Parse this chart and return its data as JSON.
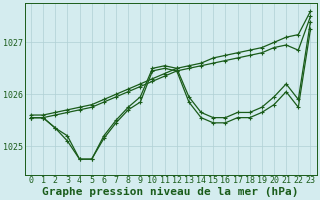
{
  "xlabel": "Graphe pression niveau de la mer (hPa)",
  "background_color": "#d4ecef",
  "grid_color": "#b0d0d4",
  "line_color": "#1a5c1a",
  "xlim": [
    -0.5,
    23.5
  ],
  "ylim_bottom": 1024.45,
  "ylim_top": 1027.75,
  "yticks": [
    1025,
    1026,
    1027
  ],
  "xticks": [
    0,
    1,
    2,
    3,
    4,
    5,
    6,
    7,
    8,
    9,
    10,
    11,
    12,
    13,
    14,
    15,
    16,
    17,
    18,
    19,
    20,
    21,
    22,
    23
  ],
  "series": [
    {
      "x": [
        0,
        1,
        2,
        3,
        4,
        5,
        6,
        7,
        8,
        9,
        10,
        11,
        12,
        13,
        14,
        15,
        16,
        17,
        18,
        19,
        20,
        21,
        22,
        23
      ],
      "y": [
        1025.6,
        1025.6,
        1025.65,
        1025.7,
        1025.75,
        1025.8,
        1025.9,
        1026.0,
        1026.1,
        1026.2,
        1026.3,
        1026.4,
        1026.5,
        1026.55,
        1026.6,
        1026.7,
        1026.75,
        1026.8,
        1026.85,
        1026.9,
        1027.0,
        1027.1,
        1027.15,
        1027.6
      ]
    },
    {
      "x": [
        0,
        1,
        2,
        3,
        4,
        5,
        6,
        7,
        8,
        9,
        10,
        11,
        12,
        13,
        14,
        15,
        16,
        17,
        18,
        19,
        20,
        21,
        22,
        23
      ],
      "y": [
        1025.55,
        1025.55,
        1025.6,
        1025.65,
        1025.7,
        1025.75,
        1025.85,
        1025.95,
        1026.05,
        1026.15,
        1026.25,
        1026.35,
        1026.45,
        1026.5,
        1026.55,
        1026.6,
        1026.65,
        1026.7,
        1026.75,
        1026.8,
        1026.9,
        1026.95,
        1026.85,
        1027.5
      ]
    },
    {
      "x": [
        0,
        1,
        2,
        3,
        4,
        5,
        6,
        7,
        8,
        9,
        10,
        11,
        12,
        13,
        14,
        15,
        16,
        17,
        18,
        19,
        20,
        21,
        22,
        23
      ],
      "y": [
        1025.55,
        1025.55,
        1025.35,
        1025.2,
        1024.75,
        1024.75,
        1025.2,
        1025.5,
        1025.75,
        1025.95,
        1026.5,
        1026.55,
        1026.5,
        1025.95,
        1025.65,
        1025.55,
        1025.55,
        1025.65,
        1025.65,
        1025.75,
        1025.95,
        1026.2,
        1025.9,
        1027.4
      ]
    },
    {
      "x": [
        0,
        1,
        2,
        3,
        4,
        5,
        6,
        7,
        8,
        9,
        10,
        11,
        12,
        13,
        14,
        15,
        16,
        17,
        18,
        19,
        20,
        21,
        22,
        23
      ],
      "y": [
        1025.55,
        1025.55,
        1025.35,
        1025.1,
        1024.75,
        1024.75,
        1025.15,
        1025.45,
        1025.7,
        1025.85,
        1026.45,
        1026.5,
        1026.45,
        1025.85,
        1025.55,
        1025.45,
        1025.45,
        1025.55,
        1025.55,
        1025.65,
        1025.8,
        1026.05,
        1025.75,
        1027.25
      ]
    }
  ],
  "font_family": "monospace",
  "xlabel_fontsize": 8,
  "tick_fontsize": 6,
  "marker": "+",
  "markersize": 3.5,
  "linewidth": 0.9
}
